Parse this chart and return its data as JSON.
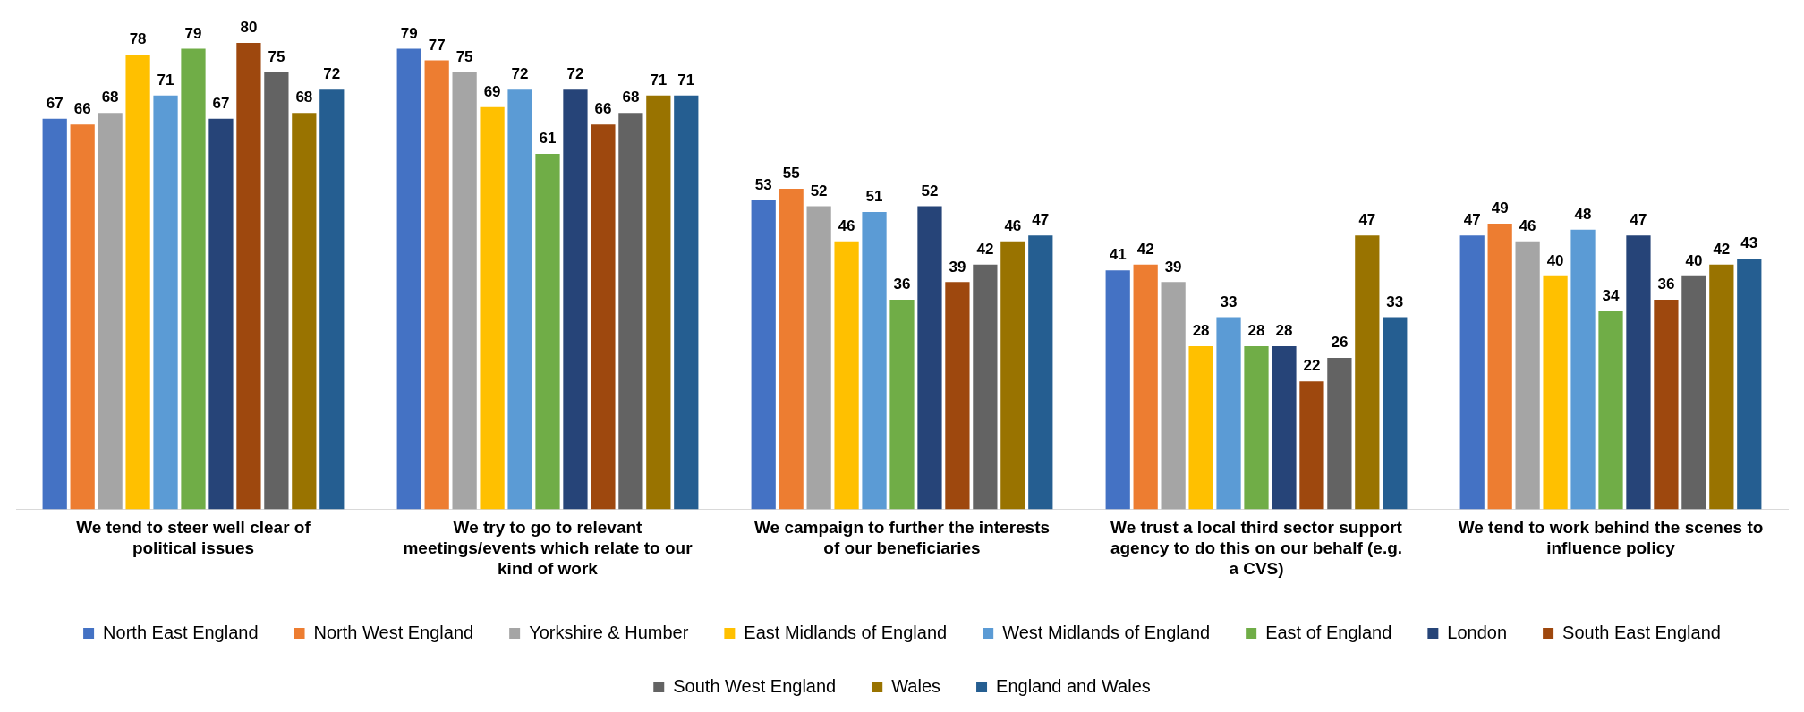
{
  "chart_data": {
    "type": "bar",
    "categories": [
      "We tend to steer well clear of political issues",
      "We try to go to relevant meetings/events which relate to our kind of work",
      "We campaign to further the interests of our beneficiaries",
      "We trust a local third sector support agency to do this on our behalf (e.g. a CVS)",
      "We tend to work behind the scenes to influence policy"
    ],
    "series": [
      {
        "name": "North East England",
        "color": "#4472c4",
        "values": [
          67,
          79,
          53,
          41,
          47
        ]
      },
      {
        "name": "North West England",
        "color": "#ed7d31",
        "values": [
          66,
          77,
          55,
          42,
          49
        ]
      },
      {
        "name": "Yorkshire & Humber",
        "color": "#a5a5a5",
        "values": [
          68,
          75,
          52,
          39,
          46
        ]
      },
      {
        "name": "East Midlands of England",
        "color": "#ffc000",
        "values": [
          78,
          69,
          46,
          28,
          40
        ]
      },
      {
        "name": "West Midlands of England",
        "color": "#5b9bd5",
        "values": [
          71,
          72,
          51,
          33,
          48
        ]
      },
      {
        "name": "East of England",
        "color": "#70ad47",
        "values": [
          79,
          61,
          36,
          28,
          34
        ]
      },
      {
        "name": "London",
        "color": "#264478",
        "values": [
          67,
          72,
          52,
          28,
          47
        ]
      },
      {
        "name": "South East England",
        "color": "#9e480e",
        "values": [
          80,
          66,
          39,
          22,
          36
        ]
      },
      {
        "name": "South West England",
        "color": "#636363",
        "values": [
          75,
          68,
          42,
          26,
          40
        ]
      },
      {
        "name": "Wales",
        "color": "#997300",
        "values": [
          68,
          71,
          46,
          47,
          42
        ]
      },
      {
        "name": "England and Wales",
        "color": "#255e91",
        "values": [
          72,
          71,
          47,
          33,
          43
        ]
      }
    ],
    "data_labels": true,
    "legend": "bottom",
    "grid": false,
    "tick_labels": "x"
  }
}
